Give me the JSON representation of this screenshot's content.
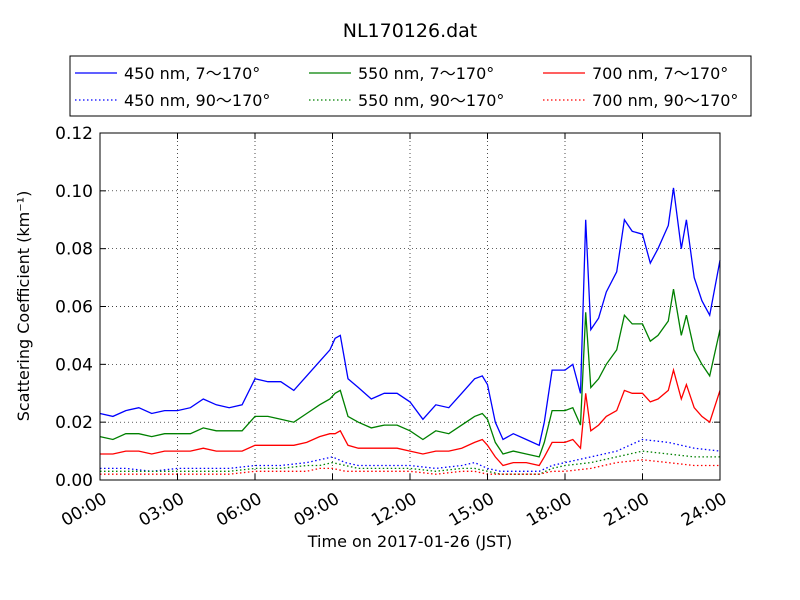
{
  "chart_data": {
    "type": "line",
    "title": "NL170126.dat",
    "xlabel": "Time on 2017-01-26 (JST)",
    "ylabel": "Scattering Coefficient (km⁻¹)",
    "ylim": [
      0.0,
      0.12
    ],
    "yticks": [
      "0.00",
      "0.02",
      "0.04",
      "0.06",
      "0.08",
      "0.10",
      "0.12"
    ],
    "xlim": [
      0,
      24
    ],
    "xticks": [
      "00:00",
      "03:00",
      "06:00",
      "09:00",
      "12:00",
      "15:00",
      "18:00",
      "21:00",
      "24:00"
    ],
    "grid": true,
    "legend_position": "top",
    "series": [
      {
        "name": "450 nm, 7～170°",
        "color": "#0000ff",
        "style": "solid",
        "x": [
          0,
          0.5,
          1,
          1.5,
          2,
          2.5,
          3,
          3.5,
          4,
          4.5,
          5,
          5.5,
          6,
          6.5,
          7,
          7.5,
          8,
          8.5,
          8.9,
          9.1,
          9.3,
          9.6,
          10,
          10.5,
          11,
          11.5,
          12,
          12.5,
          13,
          13.5,
          14,
          14.5,
          14.8,
          15,
          15.3,
          15.6,
          16,
          16.5,
          17,
          17.2,
          17.5,
          18,
          18.3,
          18.6,
          18.8,
          19,
          19.3,
          19.6,
          20,
          20.3,
          20.6,
          21,
          21.3,
          21.6,
          22,
          22.2,
          22.5,
          22.7,
          23,
          23.3,
          23.6,
          24
        ],
        "y": [
          0.023,
          0.022,
          0.024,
          0.025,
          0.023,
          0.024,
          0.024,
          0.025,
          0.028,
          0.026,
          0.025,
          0.026,
          0.035,
          0.034,
          0.034,
          0.031,
          0.036,
          0.041,
          0.045,
          0.049,
          0.05,
          0.035,
          0.032,
          0.028,
          0.03,
          0.03,
          0.027,
          0.021,
          0.026,
          0.025,
          0.03,
          0.035,
          0.036,
          0.033,
          0.02,
          0.014,
          0.016,
          0.014,
          0.012,
          0.02,
          0.038,
          0.038,
          0.04,
          0.03,
          0.09,
          0.052,
          0.056,
          0.065,
          0.072,
          0.09,
          0.086,
          0.085,
          0.075,
          0.08,
          0.088,
          0.101,
          0.08,
          0.09,
          0.07,
          0.062,
          0.057,
          0.076
        ]
      },
      {
        "name": "450 nm, 90～170°",
        "color": "#0000ff",
        "style": "dotted",
        "x": [
          0,
          1,
          2,
          3,
          4,
          5,
          6,
          7,
          8,
          8.5,
          9,
          9.5,
          10,
          11,
          12,
          13,
          14,
          14.5,
          15,
          15.5,
          16,
          17,
          17.5,
          18,
          19,
          20,
          21,
          22,
          23,
          24
        ],
        "y": [
          0.004,
          0.004,
          0.003,
          0.004,
          0.004,
          0.004,
          0.005,
          0.005,
          0.006,
          0.007,
          0.008,
          0.006,
          0.005,
          0.005,
          0.005,
          0.004,
          0.005,
          0.006,
          0.004,
          0.003,
          0.003,
          0.003,
          0.005,
          0.006,
          0.008,
          0.01,
          0.014,
          0.013,
          0.011,
          0.01
        ]
      },
      {
        "name": "550 nm, 7～170°",
        "color": "#008000",
        "style": "solid",
        "x": [
          0,
          0.5,
          1,
          1.5,
          2,
          2.5,
          3,
          3.5,
          4,
          4.5,
          5,
          5.5,
          6,
          6.5,
          7,
          7.5,
          8,
          8.5,
          8.9,
          9.1,
          9.3,
          9.6,
          10,
          10.5,
          11,
          11.5,
          12,
          12.5,
          13,
          13.5,
          14,
          14.5,
          14.8,
          15,
          15.3,
          15.6,
          16,
          16.5,
          17,
          17.2,
          17.5,
          18,
          18.3,
          18.6,
          18.8,
          19,
          19.3,
          19.6,
          20,
          20.3,
          20.6,
          21,
          21.3,
          21.6,
          22,
          22.2,
          22.5,
          22.7,
          23,
          23.3,
          23.6,
          24
        ],
        "y": [
          0.015,
          0.014,
          0.016,
          0.016,
          0.015,
          0.016,
          0.016,
          0.016,
          0.018,
          0.017,
          0.017,
          0.017,
          0.022,
          0.022,
          0.021,
          0.02,
          0.023,
          0.026,
          0.028,
          0.03,
          0.031,
          0.022,
          0.02,
          0.018,
          0.019,
          0.019,
          0.017,
          0.014,
          0.017,
          0.016,
          0.019,
          0.022,
          0.023,
          0.021,
          0.013,
          0.009,
          0.01,
          0.009,
          0.008,
          0.013,
          0.024,
          0.024,
          0.025,
          0.019,
          0.058,
          0.032,
          0.035,
          0.04,
          0.045,
          0.057,
          0.054,
          0.054,
          0.048,
          0.05,
          0.055,
          0.066,
          0.05,
          0.057,
          0.045,
          0.04,
          0.036,
          0.052
        ]
      },
      {
        "name": "550 nm, 90～170°",
        "color": "#008000",
        "style": "dotted",
        "x": [
          0,
          1,
          2,
          3,
          4,
          5,
          6,
          7,
          8,
          8.5,
          9,
          9.5,
          10,
          11,
          12,
          13,
          14,
          14.5,
          15,
          15.5,
          16,
          17,
          17.5,
          18,
          19,
          20,
          21,
          22,
          23,
          24
        ],
        "y": [
          0.003,
          0.003,
          0.003,
          0.003,
          0.003,
          0.003,
          0.004,
          0.004,
          0.005,
          0.005,
          0.006,
          0.005,
          0.004,
          0.004,
          0.004,
          0.003,
          0.004,
          0.004,
          0.003,
          0.002,
          0.002,
          0.002,
          0.004,
          0.005,
          0.006,
          0.008,
          0.01,
          0.009,
          0.008,
          0.008
        ]
      },
      {
        "name": "700 nm, 7～170°",
        "color": "#ff0000",
        "style": "solid",
        "x": [
          0,
          0.5,
          1,
          1.5,
          2,
          2.5,
          3,
          3.5,
          4,
          4.5,
          5,
          5.5,
          6,
          6.5,
          7,
          7.5,
          8,
          8.5,
          8.9,
          9.1,
          9.3,
          9.6,
          10,
          10.5,
          11,
          11.5,
          12,
          12.5,
          13,
          13.5,
          14,
          14.5,
          14.8,
          15,
          15.3,
          15.6,
          16,
          16.5,
          17,
          17.2,
          17.5,
          18,
          18.3,
          18.6,
          18.8,
          19,
          19.3,
          19.6,
          20,
          20.3,
          20.6,
          21,
          21.3,
          21.6,
          22,
          22.2,
          22.5,
          22.7,
          23,
          23.3,
          23.6,
          24
        ],
        "y": [
          0.009,
          0.009,
          0.01,
          0.01,
          0.009,
          0.01,
          0.01,
          0.01,
          0.011,
          0.01,
          0.01,
          0.01,
          0.012,
          0.012,
          0.012,
          0.012,
          0.013,
          0.015,
          0.016,
          0.016,
          0.017,
          0.012,
          0.011,
          0.011,
          0.011,
          0.011,
          0.01,
          0.009,
          0.01,
          0.01,
          0.011,
          0.013,
          0.014,
          0.012,
          0.008,
          0.005,
          0.006,
          0.006,
          0.005,
          0.008,
          0.013,
          0.013,
          0.014,
          0.011,
          0.03,
          0.017,
          0.019,
          0.022,
          0.024,
          0.031,
          0.03,
          0.03,
          0.027,
          0.028,
          0.031,
          0.038,
          0.028,
          0.033,
          0.025,
          0.022,
          0.02,
          0.031
        ]
      },
      {
        "name": "700 nm, 90～170°",
        "color": "#ff0000",
        "style": "dotted",
        "x": [
          0,
          1,
          2,
          3,
          4,
          5,
          6,
          7,
          8,
          8.5,
          9,
          9.5,
          10,
          11,
          12,
          13,
          14,
          14.5,
          15,
          15.5,
          16,
          17,
          17.5,
          18,
          19,
          20,
          21,
          22,
          23,
          24
        ],
        "y": [
          0.002,
          0.002,
          0.002,
          0.002,
          0.002,
          0.002,
          0.003,
          0.003,
          0.003,
          0.004,
          0.004,
          0.003,
          0.003,
          0.003,
          0.003,
          0.002,
          0.003,
          0.003,
          0.002,
          0.002,
          0.002,
          0.002,
          0.003,
          0.003,
          0.004,
          0.006,
          0.007,
          0.006,
          0.005,
          0.005
        ]
      }
    ]
  }
}
